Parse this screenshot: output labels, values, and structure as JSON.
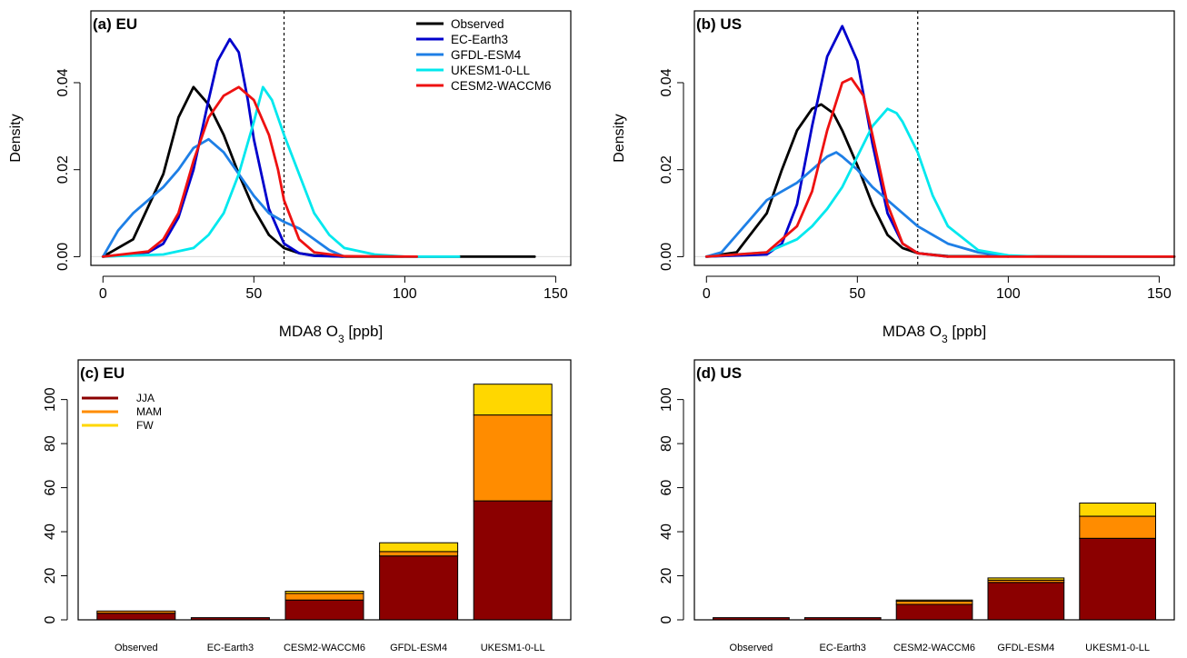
{
  "chart_data": [
    {
      "type": "line",
      "panel_label": "(a) EU",
      "xlabel_prefix": "MDA8 O",
      "xlabel_sub": "3",
      "xlabel_suffix": " [ppb]",
      "ylabel": "Density",
      "xlim": [
        -4,
        155
      ],
      "ylim": [
        -0.002,
        0.0565
      ],
      "xticks": [
        0,
        50,
        100,
        150
      ],
      "yticks": [
        0.0,
        0.02,
        0.04
      ],
      "ytick_labels": [
        "0.00",
        "0.02",
        "0.04"
      ],
      "threshold_x": 60,
      "legend": {
        "position": "top-right"
      },
      "series": [
        {
          "name": "Observed",
          "color": "#000000",
          "x": [
            0,
            10,
            20,
            25,
            30,
            35,
            40,
            45,
            50,
            55,
            60,
            65,
            70,
            80,
            143
          ],
          "y": [
            0,
            0.004,
            0.019,
            0.032,
            0.039,
            0.035,
            0.028,
            0.019,
            0.011,
            0.005,
            0.002,
            0.0008,
            0.0003,
            0,
            0
          ]
        },
        {
          "name": "EC-Earth3",
          "color": "#0000cc",
          "x": [
            0,
            15,
            20,
            25,
            30,
            35,
            38,
            42,
            45,
            48,
            50,
            55,
            60,
            65,
            70,
            80
          ],
          "y": [
            0,
            0.001,
            0.003,
            0.009,
            0.02,
            0.036,
            0.045,
            0.05,
            0.047,
            0.036,
            0.027,
            0.011,
            0.003,
            0.0008,
            0.0002,
            0
          ]
        },
        {
          "name": "GFDL-ESM4",
          "color": "#1e7fe6",
          "x": [
            0,
            5,
            10,
            15,
            20,
            25,
            30,
            35,
            40,
            45,
            50,
            55,
            60,
            65,
            70,
            75,
            80
          ],
          "y": [
            0,
            0.006,
            0.01,
            0.013,
            0.016,
            0.02,
            0.025,
            0.027,
            0.024,
            0.019,
            0.014,
            0.01,
            0.008,
            0.0065,
            0.004,
            0.0015,
            0
          ]
        },
        {
          "name": "UKESM1-0-LL",
          "color": "#00e8ee",
          "x": [
            0,
            20,
            30,
            35,
            40,
            45,
            50,
            53,
            56,
            60,
            65,
            70,
            75,
            80,
            90,
            100,
            118
          ],
          "y": [
            0,
            0.0005,
            0.002,
            0.005,
            0.01,
            0.019,
            0.031,
            0.039,
            0.036,
            0.028,
            0.019,
            0.01,
            0.005,
            0.002,
            0.0005,
            0,
            0
          ]
        },
        {
          "name": "CESM2-WACCM6",
          "color": "#ee1111",
          "x": [
            0,
            15,
            20,
            25,
            30,
            35,
            40,
            45,
            50,
            55,
            58,
            60,
            65,
            70,
            80,
            104
          ],
          "y": [
            0,
            0.0012,
            0.004,
            0.01,
            0.022,
            0.032,
            0.037,
            0.039,
            0.036,
            0.028,
            0.02,
            0.013,
            0.004,
            0.001,
            0.0001,
            0
          ]
        }
      ]
    },
    {
      "type": "line",
      "panel_label": "(b) US",
      "xlabel_prefix": "MDA8 O",
      "xlabel_sub": "3",
      "xlabel_suffix": " [ppb]",
      "ylabel": "Density",
      "xlim": [
        -4,
        155
      ],
      "ylim": [
        -0.002,
        0.0565
      ],
      "xticks": [
        0,
        50,
        100,
        150
      ],
      "yticks": [
        0.0,
        0.02,
        0.04
      ],
      "ytick_labels": [
        "0.00",
        "0.02",
        "0.04"
      ],
      "threshold_x": 70,
      "series": [
        {
          "name": "Observed",
          "color": "#000000",
          "x": [
            0,
            10,
            20,
            25,
            30,
            35,
            38,
            42,
            45,
            50,
            55,
            60,
            65,
            70,
            80,
            155
          ],
          "y": [
            0,
            0.001,
            0.01,
            0.02,
            0.029,
            0.034,
            0.035,
            0.033,
            0.029,
            0.021,
            0.012,
            0.005,
            0.002,
            0.0008,
            0.0001,
            0
          ]
        },
        {
          "name": "EC-Earth3",
          "color": "#0000cc",
          "x": [
            0,
            20,
            25,
            30,
            35,
            40,
            45,
            50,
            55,
            60,
            65,
            70,
            80
          ],
          "y": [
            0,
            0.0005,
            0.003,
            0.012,
            0.03,
            0.046,
            0.053,
            0.045,
            0.026,
            0.01,
            0.003,
            0.0008,
            0
          ]
        },
        {
          "name": "GFDL-ESM4",
          "color": "#1e7fe6",
          "x": [
            0,
            5,
            10,
            15,
            20,
            25,
            30,
            35,
            40,
            43,
            45,
            50,
            55,
            60,
            65,
            70,
            75,
            80,
            90,
            100
          ],
          "y": [
            0,
            0.001,
            0.005,
            0.009,
            0.013,
            0.015,
            0.017,
            0.02,
            0.023,
            0.024,
            0.023,
            0.02,
            0.016,
            0.013,
            0.01,
            0.007,
            0.005,
            0.003,
            0.001,
            0
          ]
        },
        {
          "name": "UKESM1-0-LL",
          "color": "#00e8ee",
          "x": [
            0,
            20,
            30,
            35,
            40,
            45,
            50,
            55,
            60,
            63,
            65,
            70,
            75,
            80,
            90,
            100,
            110,
            155
          ],
          "y": [
            0,
            0.001,
            0.004,
            0.007,
            0.011,
            0.016,
            0.023,
            0.03,
            0.034,
            0.033,
            0.031,
            0.024,
            0.014,
            0.007,
            0.0015,
            0.0003,
            0,
            0
          ]
        },
        {
          "name": "CESM2-WACCM6",
          "color": "#ee1111",
          "x": [
            0,
            20,
            30,
            35,
            40,
            45,
            48,
            52,
            55,
            60,
            65,
            70,
            80,
            155
          ],
          "y": [
            0,
            0.001,
            0.007,
            0.015,
            0.029,
            0.04,
            0.041,
            0.037,
            0.028,
            0.012,
            0.003,
            0.0008,
            0,
            0
          ]
        }
      ]
    },
    {
      "type": "bar",
      "stacked": true,
      "panel_label": "(c) EU",
      "categories": [
        "Observed",
        "EC-Earth3",
        "CESM2-WACCM6",
        "GFDL-ESM4",
        "UKESM1-0-LL"
      ],
      "ylim": [
        0,
        118
      ],
      "yticks": [
        0,
        20,
        40,
        60,
        80,
        100
      ],
      "legend": {
        "position": "top-left"
      },
      "series": [
        {
          "name": "JJA",
          "color": "#8b0000",
          "values": [
            3,
            1,
            9,
            29,
            54
          ]
        },
        {
          "name": "MAM",
          "color": "#ff8c00",
          "values": [
            1,
            0,
            3,
            2,
            39
          ]
        },
        {
          "name": "FW",
          "color": "#ffd700",
          "values": [
            0,
            0,
            1,
            4,
            14
          ]
        }
      ]
    },
    {
      "type": "bar",
      "stacked": true,
      "panel_label": "(d) US",
      "categories": [
        "Observed",
        "EC-Earth3",
        "CESM2-WACCM6",
        "GFDL-ESM4",
        "UKESM1-0-LL"
      ],
      "ylim": [
        0,
        118
      ],
      "yticks": [
        0,
        20,
        40,
        60,
        80,
        100
      ],
      "series": [
        {
          "name": "JJA",
          "color": "#8b0000",
          "values": [
            1,
            1,
            7,
            17,
            37
          ]
        },
        {
          "name": "MAM",
          "color": "#ff8c00",
          "values": [
            0,
            0,
            1.5,
            1,
            10
          ]
        },
        {
          "name": "FW",
          "color": "#ffd700",
          "values": [
            0,
            0,
            0.5,
            1,
            6
          ]
        }
      ]
    }
  ]
}
